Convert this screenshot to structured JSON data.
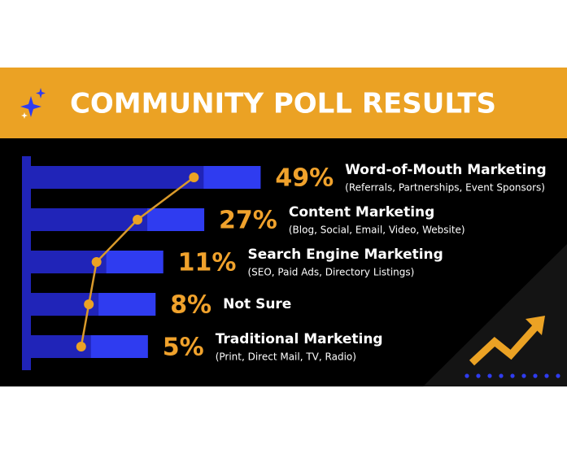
{
  "chart_data": {
    "type": "bar",
    "title": "COMMUNITY POLL RESULTS",
    "categories": [
      "Word-of-Mouth Marketing",
      "Content Marketing",
      "Search Engine Marketing",
      "Not Sure",
      "Traditional Marketing"
    ],
    "descriptions": [
      "(Referrals, Partnerships, Event Sponsors)",
      "(Blog, Social, Email, Video, Website)",
      "(SEO, Paid Ads, Directory Listings)",
      null,
      "(Print, Direct Mail, TV, Radio)"
    ],
    "values": [
      49,
      27,
      11,
      8,
      5
    ],
    "value_labels": [
      "49%",
      "27%",
      "11%",
      "8%",
      "5%"
    ],
    "color": "#2024b8",
    "label_color": "#f0a22c"
  }
}
